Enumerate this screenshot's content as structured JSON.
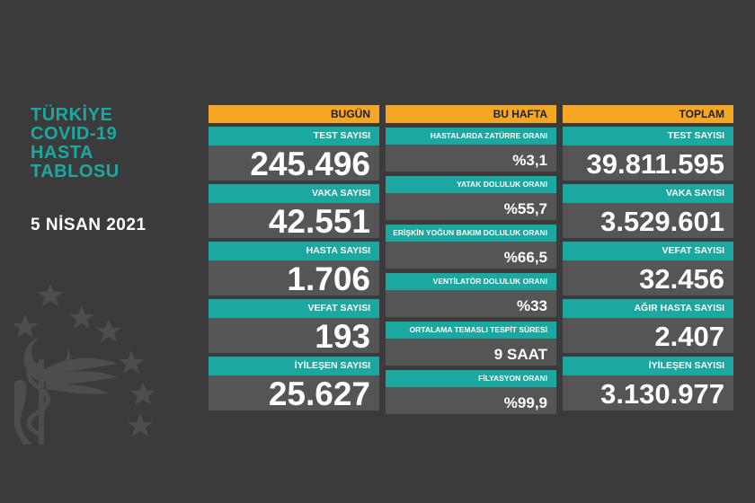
{
  "title": {
    "line1": "TÜRKİYE",
    "line2": "COVID-19",
    "line3": "HASTA",
    "line4": "TABLOSU"
  },
  "date": "5 NİSAN 2021",
  "columns": {
    "today": {
      "header": "BUGÜN",
      "items": [
        {
          "label": "TEST SAYISI",
          "value": "245.496"
        },
        {
          "label": "VAKA SAYISI",
          "value": "42.551"
        },
        {
          "label": "HASTA SAYISI",
          "value": "1.706"
        },
        {
          "label": "VEFAT SAYISI",
          "value": "193"
        },
        {
          "label": "İYİLEŞEN SAYISI",
          "value": "25.627"
        }
      ]
    },
    "week": {
      "header": "BU HAFTA",
      "items": [
        {
          "label": "HASTALARDA ZATÜRRE ORANI",
          "value": "%3,1"
        },
        {
          "label": "YATAK DOLULUK ORANI",
          "value": "%55,7"
        },
        {
          "label": "ERİŞKİN YOĞUN BAKIM DOLULUK ORANI",
          "value": "%66,5"
        },
        {
          "label": "VENTİLATÖR DOLULUK ORANI",
          "value": "%33"
        },
        {
          "label": "ORTALAMA TEMASLI TESPİT SÜRESİ",
          "value": "9 SAAT"
        },
        {
          "label": "FİLYASYON ORANI",
          "value": "%99,9"
        }
      ]
    },
    "total": {
      "header": "TOPLAM",
      "items": [
        {
          "label": "TEST SAYISI",
          "value": "39.811.595"
        },
        {
          "label": "VAKA SAYISI",
          "value": "3.529.601"
        },
        {
          "label": "VEFAT SAYISI",
          "value": "32.456"
        },
        {
          "label": "AĞIR HASTA SAYISI",
          "value": "2.407"
        },
        {
          "label": "İYİLEŞEN SAYISI",
          "value": "3.130.977"
        }
      ]
    }
  },
  "colors": {
    "background": "#3b3b3b",
    "header": "#f5a623",
    "label": "#1aa8a0",
    "value": "#555555",
    "title": "#1aa8a0"
  },
  "logo_icon": "health-ministry-emblem-icon"
}
